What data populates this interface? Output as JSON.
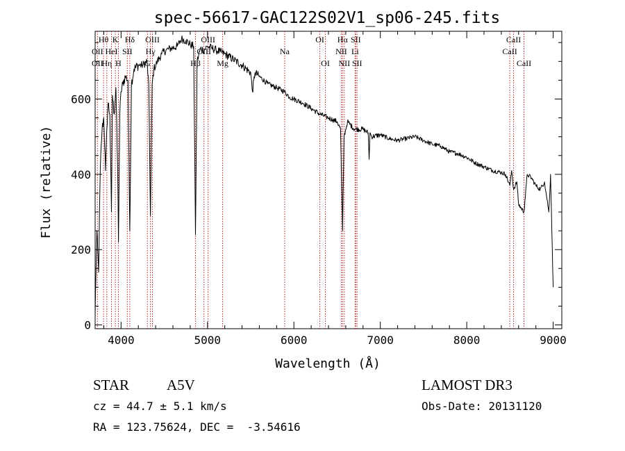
{
  "chart_data": {
    "type": "line",
    "title": "spec-56617-GAC122S02V1_sp06-245.fits",
    "xlabel": "Wavelength (Å)",
    "ylabel": "Flux (relative)",
    "xlim": [
      3700,
      9100
    ],
    "ylim": [
      -10,
      780
    ],
    "x_ticks": [
      4000,
      5000,
      6000,
      7000,
      8000,
      9000
    ],
    "x_tick_labels": [
      "4000",
      "5000",
      "6000",
      "7000",
      "8000",
      "9000"
    ],
    "y_ticks": [
      0,
      200,
      400,
      600
    ],
    "y_tick_labels": [
      "0",
      "200",
      "400",
      "600"
    ],
    "grid": false,
    "line_color": "#000000",
    "marker_color": "#b22222",
    "series": [
      {
        "name": "Flux",
        "x": [
          3700,
          3720,
          3740,
          3760,
          3780,
          3800,
          3820,
          3835,
          3850,
          3870,
          3889,
          3900,
          3920,
          3940,
          3960,
          3970,
          3985,
          4000,
          4020,
          4050,
          4080,
          4101,
          4120,
          4150,
          4200,
          4250,
          4300,
          4320,
          4340,
          4360,
          4380,
          4420,
          4470,
          4520,
          4580,
          4650,
          4700,
          4750,
          4800,
          4840,
          4861,
          4880,
          4920,
          4960,
          5000,
          5050,
          5100,
          5150,
          5200,
          5300,
          5400,
          5500,
          5520,
          5550,
          5600,
          5700,
          5800,
          5890,
          5950,
          6000,
          6100,
          6200,
          6300,
          6400,
          6450,
          6500,
          6540,
          6563,
          6580,
          6620,
          6700,
          6800,
          6860,
          6870,
          6880,
          6900,
          7000,
          7100,
          7200,
          7300,
          7400,
          7500,
          7600,
          7700,
          7800,
          7900,
          8000,
          8100,
          8200,
          8300,
          8400,
          8450,
          8498,
          8520,
          8542,
          8580,
          8600,
          8662,
          8700,
          8750,
          8800,
          8850,
          8900,
          8950,
          8970,
          9000
        ],
        "y": [
          30,
          250,
          140,
          420,
          520,
          550,
          410,
          520,
          590,
          560,
          300,
          610,
          560,
          630,
          420,
          220,
          560,
          620,
          640,
          660,
          650,
          250,
          640,
          680,
          690,
          690,
          700,
          640,
          290,
          640,
          680,
          700,
          720,
          730,
          735,
          740,
          760,
          755,
          745,
          740,
          240,
          700,
          735,
          730,
          740,
          735,
          730,
          725,
          720,
          705,
          690,
          670,
          620,
          670,
          660,
          640,
          630,
          620,
          605,
          600,
          590,
          575,
          560,
          550,
          545,
          540,
          520,
          250,
          500,
          540,
          520,
          520,
          510,
          440,
          510,
          500,
          505,
          495,
          490,
          495,
          500,
          490,
          480,
          475,
          460,
          455,
          445,
          430,
          420,
          410,
          405,
          400,
          370,
          410,
          360,
          380,
          320,
          300,
          400,
          390,
          370,
          360,
          380,
          300,
          400,
          100
        ]
      }
    ],
    "line_markers": [
      {
        "label": "Hθ",
        "wavelength": 3797,
        "row": 0
      },
      {
        "label": "OII",
        "wavelength": 3727,
        "row": 1
      },
      {
        "label": "OII",
        "wavelength": 3727,
        "row": 2
      },
      {
        "label": "Hη",
        "wavelength": 3835,
        "row": 2
      },
      {
        "label": "K",
        "wavelength": 3934,
        "row": 0
      },
      {
        "label": "HeI",
        "wavelength": 3889,
        "row": 1
      },
      {
        "label": "SII",
        "wavelength": 4072,
        "row": 1
      },
      {
        "label": "H",
        "wavelength": 3969,
        "row": 2
      },
      {
        "label": "Hδ",
        "wavelength": 4101,
        "row": 0
      },
      {
        "label": "OIII",
        "wavelength": 4363,
        "row": 0
      },
      {
        "label": "Hγ",
        "wavelength": 4340,
        "row": 1
      },
      {
        "label": "G",
        "wavelength": 4305,
        "row": 2
      },
      {
        "label": "OIII",
        "wavelength": 5007,
        "row": 0
      },
      {
        "label": "OIII",
        "wavelength": 4959,
        "row": 1
      },
      {
        "label": "Hβ",
        "wavelength": 4861,
        "row": 2
      },
      {
        "label": "Mg",
        "wavelength": 5175,
        "row": 2
      },
      {
        "label": "Na",
        "wavelength": 5893,
        "row": 1
      },
      {
        "label": "OI",
        "wavelength": 6300,
        "row": 0
      },
      {
        "label": "OI",
        "wavelength": 6364,
        "row": 2
      },
      {
        "label": "Hα",
        "wavelength": 6563,
        "row": 0
      },
      {
        "label": "SII",
        "wavelength": 6716,
        "row": 0
      },
      {
        "label": "NII",
        "wavelength": 6548,
        "row": 1
      },
      {
        "label": "Li",
        "wavelength": 6708,
        "row": 1
      },
      {
        "label": "NII",
        "wavelength": 6583,
        "row": 2
      },
      {
        "label": "SII",
        "wavelength": 6731,
        "row": 2
      },
      {
        "label": "CaII",
        "wavelength": 8542,
        "row": 0
      },
      {
        "label": "CaII",
        "wavelength": 8498,
        "row": 1
      },
      {
        "label": "CaII",
        "wavelength": 8662,
        "row": 2
      }
    ]
  },
  "info": {
    "object_class": "STAR",
    "subclass": "A5V",
    "survey": "LAMOST DR3",
    "cz": "cz = 44.7 ± 5.1 km/s",
    "obs_date": "Obs-Date: 20131120",
    "coords": "RA = 123.75624, DEC =  -3.54616"
  }
}
